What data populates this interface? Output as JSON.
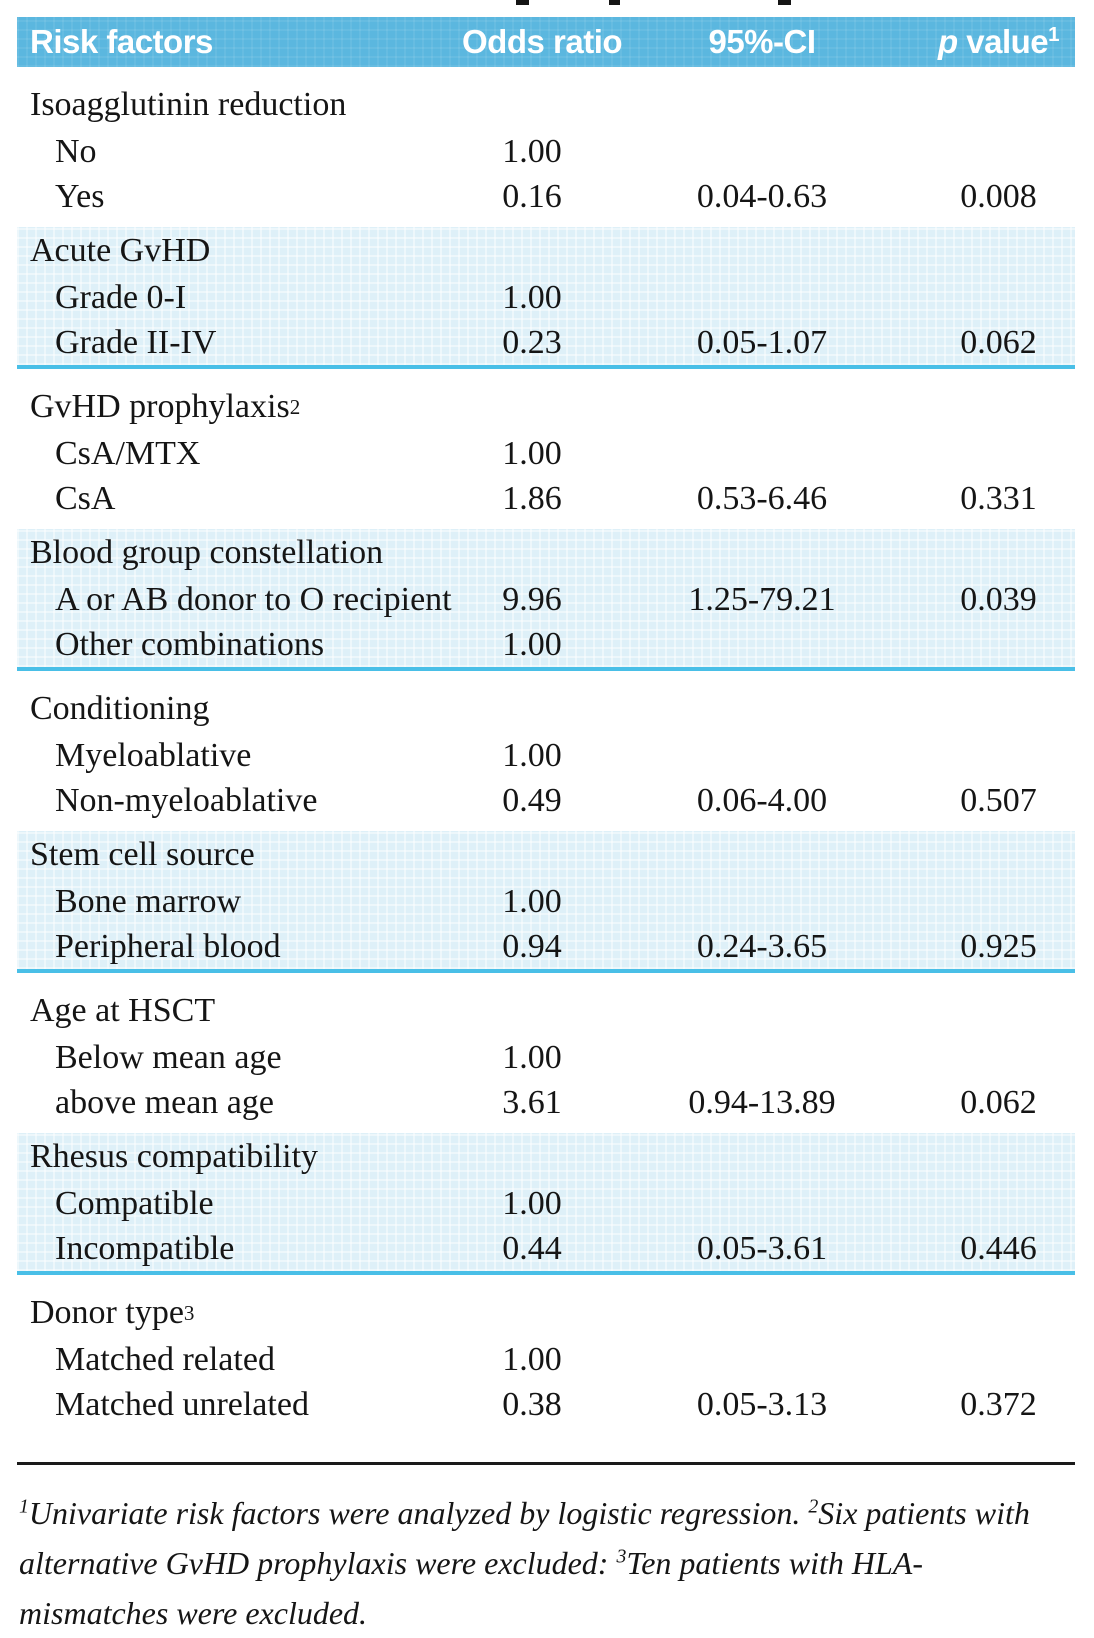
{
  "colors": {
    "header_bg": "#5bb7df",
    "header_text": "#ffffff",
    "shaded_band_bg": "#def0f8",
    "band_separator": "#49bfe7",
    "body_text": "#151515",
    "bottom_rule": "#1a1a1a"
  },
  "header": {
    "risk_factors": "Risk factors",
    "odds_ratio": "Odds ratio",
    "ci": "95%-CI",
    "p_italic": "p",
    "p_rest": " value",
    "p_sup": "1"
  },
  "sections": [
    {
      "heading": "Isoagglutinin reduction",
      "sup": "",
      "shaded": false,
      "rows": [
        {
          "label": "No",
          "or": "1.00",
          "ci": "",
          "p": ""
        },
        {
          "label": "Yes",
          "or": "0.16",
          "ci": "0.04-0.63",
          "p": "0.008"
        }
      ]
    },
    {
      "heading": "Acute GvHD",
      "sup": "",
      "shaded": true,
      "rows": [
        {
          "label": "Grade 0-I",
          "or": "1.00",
          "ci": "",
          "p": ""
        },
        {
          "label": "Grade II-IV",
          "or": "0.23",
          "ci": "0.05-1.07",
          "p": "0.062"
        }
      ]
    },
    {
      "heading": "GvHD prophylaxis",
      "sup": "2",
      "shaded": false,
      "rows": [
        {
          "label": "CsA/MTX",
          "or": "1.00",
          "ci": "",
          "p": ""
        },
        {
          "label": "CsA",
          "or": "1.86",
          "ci": "0.53-6.46",
          "p": "0.331"
        }
      ]
    },
    {
      "heading": "Blood group constellation",
      "sup": "",
      "shaded": true,
      "rows": [
        {
          "label": "A or AB donor to O recipient",
          "or": "9.96",
          "ci": "1.25-79.21",
          "p": "0.039"
        },
        {
          "label": "Other combinations",
          "or": "1.00",
          "ci": "",
          "p": ""
        }
      ]
    },
    {
      "heading": "Conditioning",
      "sup": "",
      "shaded": false,
      "rows": [
        {
          "label": "Myeloablative",
          "or": "1.00",
          "ci": "",
          "p": ""
        },
        {
          "label": "Non-myeloablative",
          "or": "0.49",
          "ci": "0.06-4.00",
          "p": "0.507"
        }
      ]
    },
    {
      "heading": "Stem cell source",
      "sup": "",
      "shaded": true,
      "rows": [
        {
          "label": "Bone marrow",
          "or": "1.00",
          "ci": "",
          "p": ""
        },
        {
          "label": "Peripheral blood",
          "or": "0.94",
          "ci": "0.24-3.65",
          "p": "0.925"
        }
      ]
    },
    {
      "heading": "Age at HSCT",
      "sup": "",
      "shaded": false,
      "rows": [
        {
          "label": "Below mean age",
          "or": "1.00",
          "ci": "",
          "p": ""
        },
        {
          "label": "above mean age",
          "or": "3.61",
          "ci": "0.94-13.89",
          "p": "0.062"
        }
      ]
    },
    {
      "heading": "Rhesus compatibility",
      "sup": "",
      "shaded": true,
      "rows": [
        {
          "label": "Compatible",
          "or": "1.00",
          "ci": "",
          "p": ""
        },
        {
          "label": "Incompatible",
          "or": "0.44",
          "ci": "0.05-3.61",
          "p": "0.446"
        }
      ]
    },
    {
      "heading": "Donor type",
      "sup": "3",
      "shaded": false,
      "rows": [
        {
          "label": "Matched related",
          "or": "1.00",
          "ci": "",
          "p": ""
        },
        {
          "label": "Matched unrelated",
          "or": "0.38",
          "ci": "0.05-3.13",
          "p": "0.372"
        }
      ]
    }
  ],
  "footnotes": [
    {
      "sup": "1",
      "text": "Univariate risk factors were analyzed by logistic regression. "
    },
    {
      "sup": "2",
      "text": "Six patients with alternative GvHD prophylaxis were excluded: "
    },
    {
      "sup": "3",
      "text": "Ten patients with HLA-mismatches were excluded."
    }
  ]
}
